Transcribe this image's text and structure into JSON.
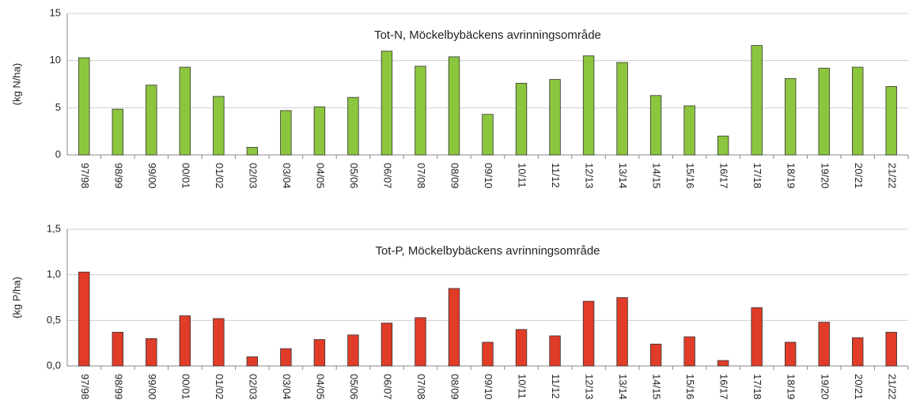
{
  "chart_data": [
    {
      "type": "bar",
      "title": "Tot-N, Möckelbybäckens avrinningsområde",
      "y_label": "(kg N/ha)",
      "categories": [
        "97/98",
        "98/99",
        "99/00",
        "00/01",
        "01/02",
        "02/03",
        "03/04",
        "04/05",
        "05/06",
        "06/07",
        "07/08",
        "08/09",
        "09/10",
        "10/11",
        "11/12",
        "12/13",
        "13/14",
        "14/15",
        "15/16",
        "16/17",
        "17/18",
        "18/19",
        "19/20",
        "20/21",
        "21/22"
      ],
      "values": [
        10.3,
        4.85,
        7.4,
        9.3,
        6.2,
        0.8,
        4.7,
        5.1,
        6.1,
        11.0,
        9.4,
        10.4,
        4.3,
        7.6,
        8.0,
        10.5,
        9.8,
        6.3,
        5.2,
        2.0,
        11.6,
        8.1,
        9.2,
        9.3,
        7.25
      ],
      "color": "#8cc63e",
      "ylim": [
        0,
        15
      ],
      "yticks": [
        0,
        5,
        10,
        15
      ],
      "grid": true
    },
    {
      "type": "bar",
      "title": "Tot-P, Möckelbybäckens avrinningsområde",
      "y_label": "(kg P/ha)",
      "categories": [
        "97/98",
        "98/99",
        "99/00",
        "00/01",
        "01/02",
        "02/03",
        "03/04",
        "04/05",
        "05/06",
        "06/07",
        "07/08",
        "08/09",
        "09/10",
        "10/11",
        "11/12",
        "12/13",
        "13/14",
        "14/15",
        "15/16",
        "16/17",
        "17/18",
        "18/19",
        "19/20",
        "20/21",
        "21/22"
      ],
      "values": [
        1.03,
        0.37,
        0.3,
        0.55,
        0.52,
        0.1,
        0.19,
        0.29,
        0.34,
        0.47,
        0.53,
        0.85,
        0.26,
        0.4,
        0.33,
        0.71,
        0.75,
        0.24,
        0.32,
        0.06,
        0.64,
        0.26,
        0.48,
        0.31,
        0.37
      ],
      "color": "#e03c28",
      "ylim": [
        0,
        1.5
      ],
      "yticks": [
        {
          "value": 0,
          "label": "0,0"
        },
        {
          "value": 0.5,
          "label": "0,5"
        },
        {
          "value": 1,
          "label": "1,0"
        },
        {
          "value": 1.5,
          "label": "1,5"
        }
      ],
      "grid": true
    }
  ]
}
